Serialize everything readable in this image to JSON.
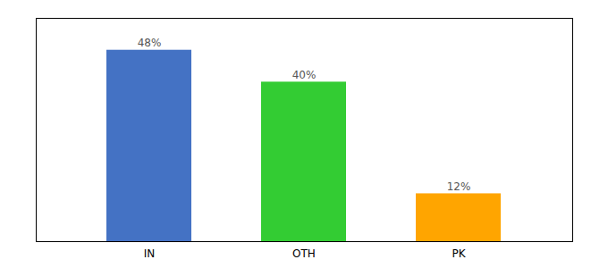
{
  "chart_data": {
    "type": "bar",
    "categories": [
      "IN",
      "OTH",
      "PK"
    ],
    "values": [
      48,
      40,
      12
    ],
    "value_labels": [
      "48%",
      "40%",
      "12%"
    ],
    "colors": [
      "#4472C4",
      "#33CC33",
      "#FFA500"
    ],
    "ylim": [
      0,
      56
    ],
    "yticks": [],
    "tick_labels": "x",
    "data_labels": true
  }
}
